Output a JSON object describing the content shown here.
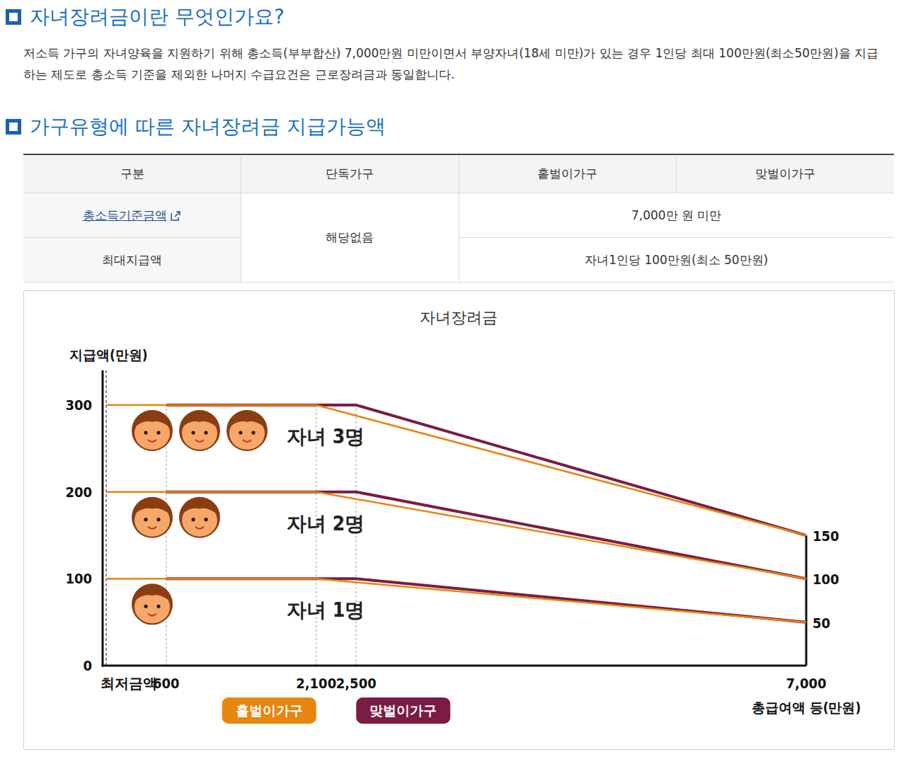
{
  "sections": [
    {
      "title": "자녀장려금이란 무엇인가요?",
      "text": "저소득 가구의 자녀양육을 지원하기 위해 총소득(부부합산) 7,000만원 미만이면서 부양자녀(18세 미만)가 있는 경우 1인당 최대 100만원(최소50만원)을 지급하는 제도로 총소득 기준을 제외한 나머지 수급요건은 근로장려금과 동일합니다."
    },
    {
      "title": "가구유형에 따른 자녀장려금 지급가능액"
    }
  ],
  "table": {
    "header": [
      "구분",
      "단독가구",
      "홑벌이가구",
      "맞벌이가구"
    ],
    "single": "해당없음",
    "rows": [
      {
        "label": "총소득기준금액",
        "link": true,
        "value": "7,000만 원 미만"
      },
      {
        "label": "최대지급액",
        "value": "자녀1인당 100만원(최소 50만원)"
      }
    ]
  },
  "chart_data": {
    "type": "line",
    "title": "자녀장려금",
    "ylabel": "지급액(만원)",
    "xlabel": "총급여액 등(만원)",
    "xlim": [
      0,
      7000
    ],
    "ylim": [
      0,
      340
    ],
    "xticks": [
      {
        "value": 0,
        "label": "최저금액"
      },
      600,
      {
        "value": 2100,
        "label": "2,100"
      },
      {
        "value": 2500,
        "label": "2,500"
      },
      {
        "value": 7000,
        "label": "7,000"
      }
    ],
    "yticks": [
      0,
      100,
      200,
      300
    ],
    "grid": true,
    "end_labels": [
      50,
      100,
      150
    ],
    "households": [
      {
        "name": "홑벌이가구",
        "color": "#e8850f",
        "x": [
          0,
          2100,
          7000
        ]
      },
      {
        "name": "맞벌이가구",
        "color": "#7a1c44",
        "x": [
          600,
          2500,
          7000
        ]
      }
    ],
    "groups": [
      {
        "label": "자녀 1명",
        "icons": 1,
        "values": [
          [
            100,
            100,
            50
          ],
          [
            100,
            100,
            50
          ]
        ]
      },
      {
        "label": "자녀 2명",
        "icons": 2,
        "values": [
          [
            200,
            200,
            100
          ],
          [
            200,
            200,
            100
          ]
        ]
      },
      {
        "label": "자녀 3명",
        "icons": 3,
        "values": [
          [
            300,
            300,
            150
          ],
          [
            300,
            300,
            150
          ]
        ]
      }
    ]
  }
}
